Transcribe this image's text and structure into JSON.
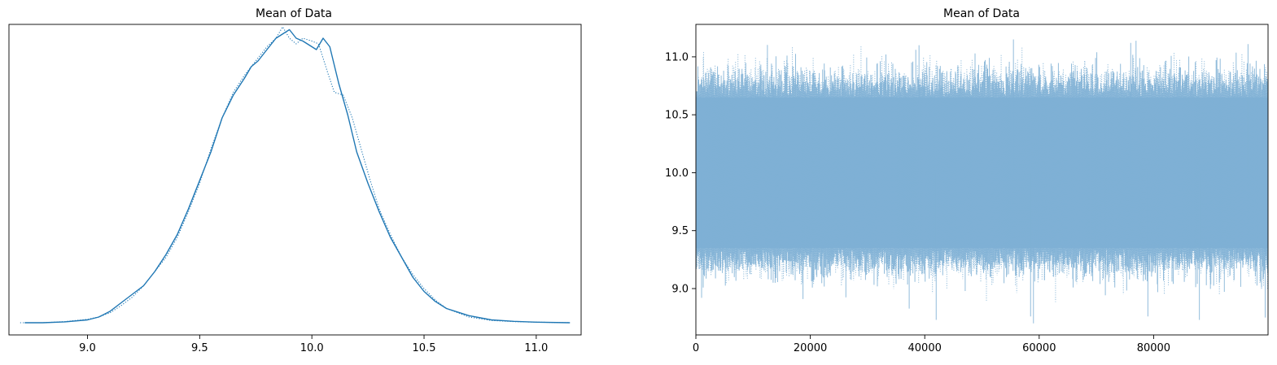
{
  "colors": {
    "primary": "#1f77b4",
    "trace": "#7fb0d5"
  },
  "chart_data": [
    {
      "type": "line",
      "title": "Mean of Data",
      "xlabel": "",
      "ylabel": "",
      "xlim": [
        8.65,
        11.2
      ],
      "x_ticks": [
        9.0,
        9.5,
        10.0,
        10.5,
        11.0
      ],
      "x_tick_labels": [
        "9.0",
        "9.5",
        "10.0",
        "10.5",
        "11.0"
      ],
      "y_ticks": [],
      "grid": false,
      "series": [
        {
          "style": "solid",
          "x": [
            8.72,
            8.8,
            8.9,
            9.0,
            9.05,
            9.1,
            9.15,
            9.2,
            9.25,
            9.3,
            9.35,
            9.4,
            9.45,
            9.5,
            9.55,
            9.6,
            9.65,
            9.7,
            9.73,
            9.76,
            9.8,
            9.84,
            9.88,
            9.9,
            9.93,
            9.96,
            10.0,
            10.02,
            10.05,
            10.08,
            10.12,
            10.16,
            10.2,
            10.25,
            10.3,
            10.35,
            10.4,
            10.45,
            10.5,
            10.55,
            10.6,
            10.7,
            10.8,
            10.9,
            11.0,
            11.15
          ],
          "y": [
            0.0,
            0.0,
            0.003,
            0.01,
            0.02,
            0.04,
            0.07,
            0.1,
            0.13,
            0.18,
            0.24,
            0.31,
            0.4,
            0.5,
            0.6,
            0.72,
            0.8,
            0.86,
            0.9,
            0.92,
            0.96,
            1.0,
            1.02,
            1.03,
            1.0,
            0.99,
            0.97,
            0.96,
            1.0,
            0.97,
            0.84,
            0.73,
            0.6,
            0.49,
            0.39,
            0.3,
            0.23,
            0.16,
            0.11,
            0.075,
            0.05,
            0.025,
            0.01,
            0.005,
            0.002,
            0.0
          ]
        },
        {
          "style": "dotted",
          "x": [
            8.7,
            8.8,
            8.9,
            9.0,
            9.05,
            9.1,
            9.15,
            9.2,
            9.25,
            9.3,
            9.35,
            9.4,
            9.45,
            9.5,
            9.55,
            9.6,
            9.65,
            9.7,
            9.73,
            9.76,
            9.8,
            9.84,
            9.87,
            9.9,
            9.93,
            9.96,
            10.0,
            10.03,
            10.07,
            10.1,
            10.14,
            10.18,
            10.22,
            10.26,
            10.3,
            10.35,
            10.4,
            10.45,
            10.5,
            10.55,
            10.6,
            10.7,
            10.8,
            10.9,
            11.0,
            11.15
          ],
          "y": [
            0.0,
            0.0,
            0.004,
            0.012,
            0.02,
            0.035,
            0.06,
            0.09,
            0.13,
            0.18,
            0.23,
            0.3,
            0.39,
            0.49,
            0.61,
            0.72,
            0.81,
            0.87,
            0.9,
            0.93,
            0.97,
            1.0,
            1.04,
            1.0,
            0.98,
            1.0,
            0.99,
            0.98,
            0.88,
            0.81,
            0.8,
            0.72,
            0.61,
            0.5,
            0.4,
            0.31,
            0.23,
            0.17,
            0.12,
            0.08,
            0.05,
            0.02,
            0.008,
            0.004,
            0.002,
            0.0
          ]
        }
      ]
    },
    {
      "type": "line",
      "title": "Mean of Data",
      "xlabel": "",
      "ylabel": "",
      "xlim": [
        0,
        100000
      ],
      "ylim": [
        8.6,
        11.28
      ],
      "x_ticks": [
        0,
        20000,
        40000,
        60000,
        80000
      ],
      "x_tick_labels": [
        "0",
        "20000",
        "40000",
        "60000",
        "80000"
      ],
      "y_ticks": [
        9.0,
        9.5,
        10.0,
        10.5,
        11.0
      ],
      "y_tick_labels": [
        "9.0",
        "9.5",
        "10.0",
        "10.5",
        "11.0"
      ],
      "grid": false,
      "trace": {
        "samples": 100000,
        "mean": 10.0,
        "band_low": 9.35,
        "band_high": 10.65,
        "min": 8.73,
        "max": 11.15
      }
    }
  ]
}
